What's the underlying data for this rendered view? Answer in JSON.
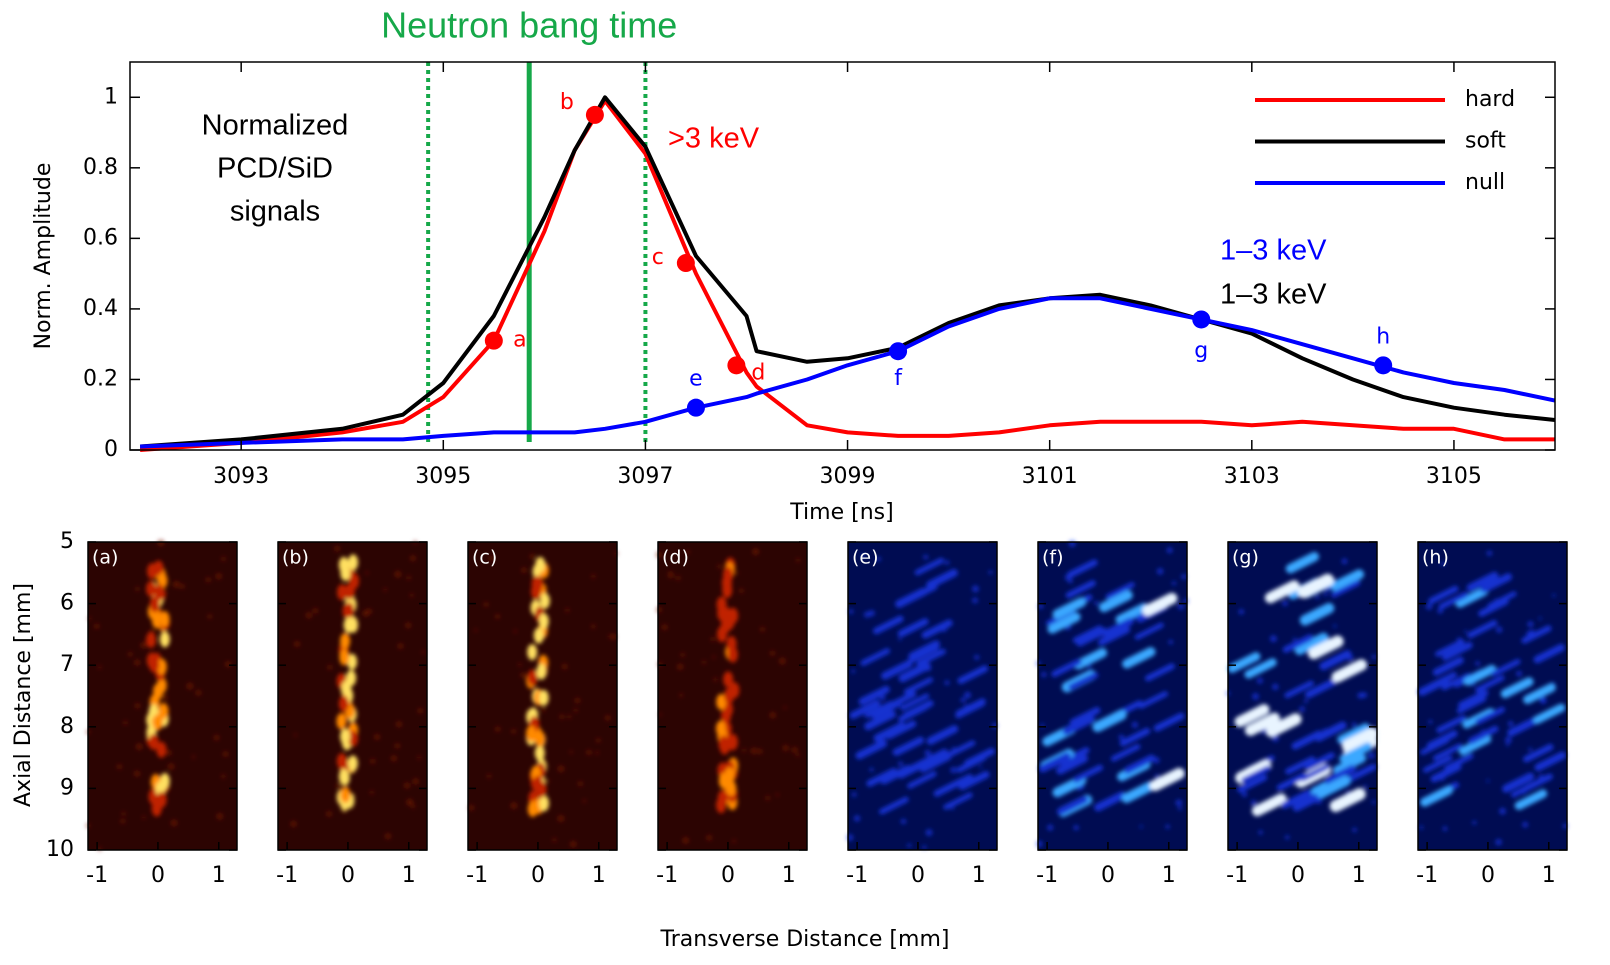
{
  "chart_data": [
    {
      "type": "line",
      "title": "Neutron bang time",
      "title_color": "#16a849",
      "xlabel": "Time [ns]",
      "ylabel": "Norm. Amplitude",
      "xlim": [
        3091.9,
        3106
      ],
      "ylim": [
        0,
        1.1
      ],
      "xticks": [
        3093,
        3095,
        3097,
        3099,
        3101,
        3103,
        3105
      ],
      "yticks": [
        0,
        0.2,
        0.4,
        0.6,
        0.8,
        1
      ],
      "x": [
        3092,
        3093,
        3094,
        3094.6,
        3095,
        3095.5,
        3096,
        3096.3,
        3096.6,
        3097,
        3097.5,
        3098,
        3098.1,
        3098.6,
        3099,
        3099.5,
        3100,
        3100.5,
        3101,
        3101.5,
        3102,
        3102.5,
        3103,
        3103.5,
        3104,
        3104.5,
        3105,
        3105.5,
        3106
      ],
      "series": [
        {
          "name": "hard",
          "color": "#ff0000",
          "values": [
            0.0,
            0.02,
            0.05,
            0.08,
            0.15,
            0.31,
            0.62,
            0.85,
            0.99,
            0.84,
            0.5,
            0.22,
            0.18,
            0.07,
            0.05,
            0.04,
            0.04,
            0.05,
            0.07,
            0.08,
            0.08,
            0.08,
            0.07,
            0.08,
            0.07,
            0.06,
            0.06,
            0.03,
            0.03
          ]
        },
        {
          "name": "soft",
          "color": "#000000",
          "values": [
            0.01,
            0.03,
            0.06,
            0.1,
            0.19,
            0.38,
            0.66,
            0.85,
            1.0,
            0.86,
            0.55,
            0.38,
            0.28,
            0.25,
            0.26,
            0.29,
            0.36,
            0.41,
            0.43,
            0.44,
            0.41,
            0.37,
            0.33,
            0.26,
            0.2,
            0.15,
            0.12,
            0.1,
            0.085
          ]
        },
        {
          "name": "null",
          "color": "#0000ff",
          "values": [
            0.01,
            0.02,
            0.03,
            0.03,
            0.04,
            0.05,
            0.05,
            0.05,
            0.06,
            0.08,
            0.12,
            0.15,
            0.16,
            0.2,
            0.24,
            0.28,
            0.35,
            0.4,
            0.43,
            0.43,
            0.4,
            0.37,
            0.34,
            0.3,
            0.26,
            0.22,
            0.19,
            0.17,
            0.14
          ]
        }
      ],
      "legend": "upper right",
      "bang_time": 3095.85,
      "window": [
        3094.85,
        3097
      ],
      "markers": [
        {
          "label": "a",
          "x": 3095.5,
          "y": 0.31,
          "color": "#ff0000"
        },
        {
          "label": "b",
          "x": 3096.5,
          "y": 0.95,
          "color": "#ff0000"
        },
        {
          "label": "c",
          "x": 3097.4,
          "y": 0.53,
          "color": "#ff0000"
        },
        {
          "label": "d",
          "x": 3097.9,
          "y": 0.24,
          "color": "#ff0000"
        },
        {
          "label": "e",
          "x": 3097.5,
          "y": 0.12,
          "color": "#0000ff"
        },
        {
          "label": "f",
          "x": 3099.5,
          "y": 0.28,
          "color": "#0000ff"
        },
        {
          "label": "g",
          "x": 3102.5,
          "y": 0.37,
          "color": "#0000ff"
        },
        {
          "label": "h",
          "x": 3104.3,
          "y": 0.24,
          "color": "#0000ff"
        }
      ],
      "annotations": [
        {
          "lines": [
            "Normalized",
            "PCD/SiD",
            "signals"
          ],
          "color": "#000000"
        },
        {
          "lines": [
            ">3 keV"
          ],
          "color": "#ff0000"
        },
        {
          "lines": [
            "1–3 keV"
          ],
          "color": "#0000ff"
        },
        {
          "lines": [
            "1–3 keV"
          ],
          "color": "#000000"
        }
      ]
    },
    {
      "type": "image",
      "xlabel": "Transverse Distance [mm]",
      "ylabel": "Axial Distance [mm]",
      "xlim": [
        -1.15,
        1.3
      ],
      "ylim": [
        5,
        10
      ],
      "y_reversed": true,
      "xticks": [
        -1,
        0,
        1
      ],
      "yticks": [
        5,
        6,
        7,
        8,
        9,
        10
      ],
      "panels": [
        {
          "label": "(a)",
          "colormap": "hot"
        },
        {
          "label": "(b)",
          "colormap": "hot"
        },
        {
          "label": "(c)",
          "colormap": "hot"
        },
        {
          "label": "(d)",
          "colormap": "hot"
        },
        {
          "label": "(e)",
          "colormap": "blue"
        },
        {
          "label": "(f)",
          "colormap": "blue"
        },
        {
          "label": "(g)",
          "colormap": "blue"
        },
        {
          "label": "(h)",
          "colormap": "blue"
        }
      ]
    }
  ]
}
